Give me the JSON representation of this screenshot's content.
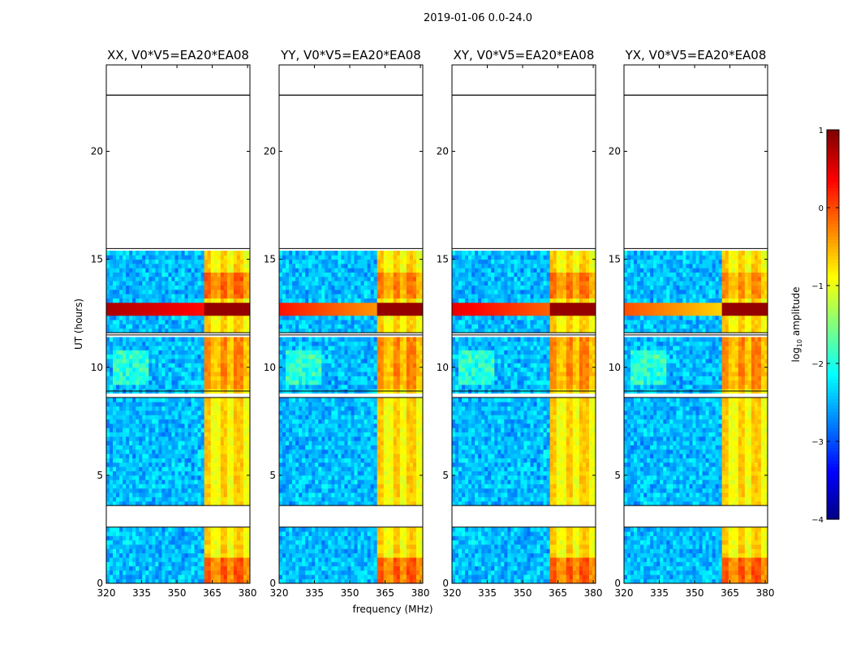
{
  "chart_data": {
    "type": "heatmap",
    "suptitle": "2019-01-06 0.0-24.0",
    "xlabel": "frequency (MHz)",
    "ylabel": "UT (hours)",
    "xlim": [
      320,
      381
    ],
    "ylim": [
      0,
      24
    ],
    "xticks": [
      320,
      335,
      350,
      365,
      380
    ],
    "yticks": [
      0,
      5,
      10,
      15,
      20
    ],
    "ytick_labels": [
      "0",
      "5",
      "10",
      "15",
      "20"
    ],
    "panels": [
      {
        "title": "XX, V0*V5=EA20*EA08",
        "pol": "XX",
        "show_ylabel": true
      },
      {
        "title": "YY, V0*V5=EA20*EA08",
        "pol": "YY",
        "show_ylabel": false
      },
      {
        "title": "XY, V0*V5=EA20*EA08",
        "pol": "XY",
        "show_ylabel": false
      },
      {
        "title": "YX, V0*V5=EA20*EA08",
        "pol": "YX",
        "show_ylabel": false
      }
    ],
    "data_gaps_hours": [
      [
        22.6,
        24.0
      ],
      [
        15.5,
        22.6
      ],
      [
        2.6,
        3.6
      ],
      [
        8.6,
        8.9
      ],
      [
        11.5,
        11.6
      ]
    ],
    "rfi_band_mhz": [
      361.5,
      381
    ],
    "strong_event_hours": [
      12.3,
      13.1
    ],
    "colorbar": {
      "label": "log10 amplitude",
      "ticks": [
        1,
        0,
        -1,
        -2,
        -3,
        -4
      ],
      "tick_labels": [
        "1",
        "0",
        "−1",
        "−2",
        "−3",
        "−4"
      ],
      "range": [
        -4,
        1
      ],
      "colormap": "jet"
    }
  }
}
